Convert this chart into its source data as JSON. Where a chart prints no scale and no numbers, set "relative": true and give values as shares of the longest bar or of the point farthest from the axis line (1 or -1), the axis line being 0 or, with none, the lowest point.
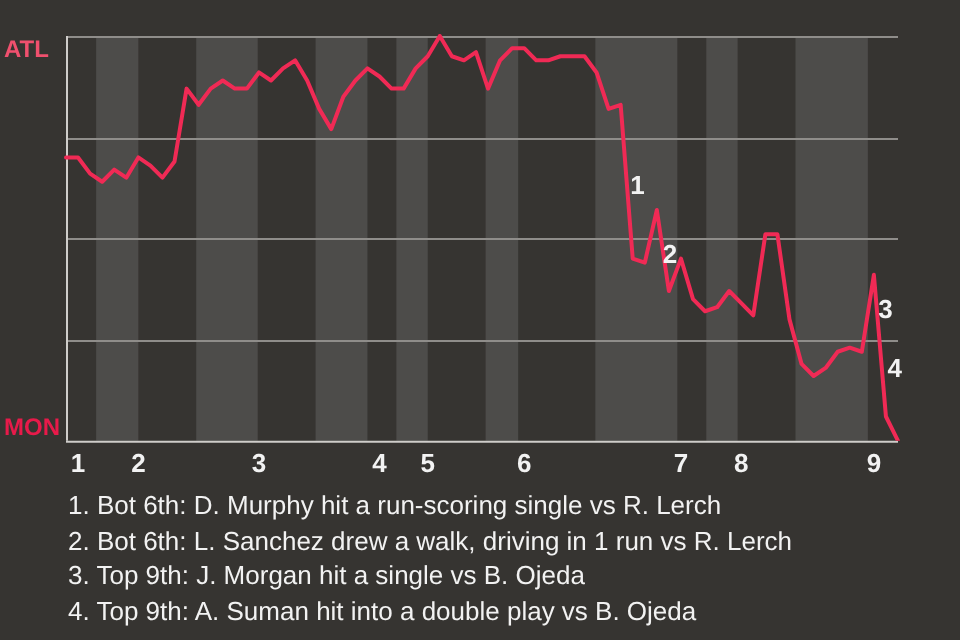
{
  "chart_data": {
    "type": "line",
    "relative": true,
    "categories": [
      null,
      "1",
      null,
      null,
      null,
      null,
      "2",
      null,
      null,
      null,
      null,
      null,
      null,
      null,
      null,
      null,
      "3",
      null,
      null,
      null,
      null,
      null,
      null,
      null,
      null,
      null,
      "4",
      null,
      null,
      null,
      "5",
      null,
      null,
      null,
      null,
      null,
      null,
      null,
      "6",
      null,
      null,
      null,
      null,
      null,
      null,
      null,
      null,
      null,
      null,
      null,
      null,
      "7",
      null,
      null,
      null,
      null,
      "8",
      null,
      null,
      null,
      null,
      null,
      null,
      null,
      null,
      null,
      null,
      "9",
      null,
      null
    ],
    "series": [
      {
        "color": "#f02a55",
        "values": [
          0.7,
          0.7,
          0.66,
          0.64,
          0.67,
          0.65,
          0.7,
          0.68,
          0.65,
          0.69,
          0.87,
          0.83,
          0.87,
          0.89,
          0.87,
          0.87,
          0.91,
          0.89,
          0.92,
          0.94,
          0.89,
          0.82,
          0.77,
          0.85,
          0.89,
          0.92,
          0.9,
          0.87,
          0.87,
          0.92,
          0.95,
          1,
          0.95,
          0.94,
          0.96,
          0.87,
          0.94,
          0.97,
          0.97,
          0.94,
          0.94,
          0.95,
          0.95,
          0.95,
          0.91,
          0.82,
          0.83,
          0.45,
          0.44,
          0.57,
          0.37,
          0.45,
          0.35,
          0.32,
          0.33,
          0.37,
          0.34,
          0.31,
          0.51,
          0.51,
          0.3,
          0.19,
          0.16,
          0.18,
          0.22,
          0.23,
          0.22,
          0.41,
          0.06,
          0
        ]
      }
    ],
    "grid": "y",
    "legend": false,
    "marker": "none",
    "line_style": "solid",
    "annotations": [
      "ATL",
      "MON",
      "1",
      "2",
      "3",
      "4",
      "1. Bot 6th: D. Murphy hit a run-scoring single vs R. Lerch",
      "2. Bot 6th: L. Sanchez drew a walk, driving in 1 run vs R. Lerch",
      "3. Top 9th: J. Morgan hit a single vs B. Ojeda",
      "4. Top 9th: A. Suman hit into a double play vs B. Ojeda"
    ]
  }
}
